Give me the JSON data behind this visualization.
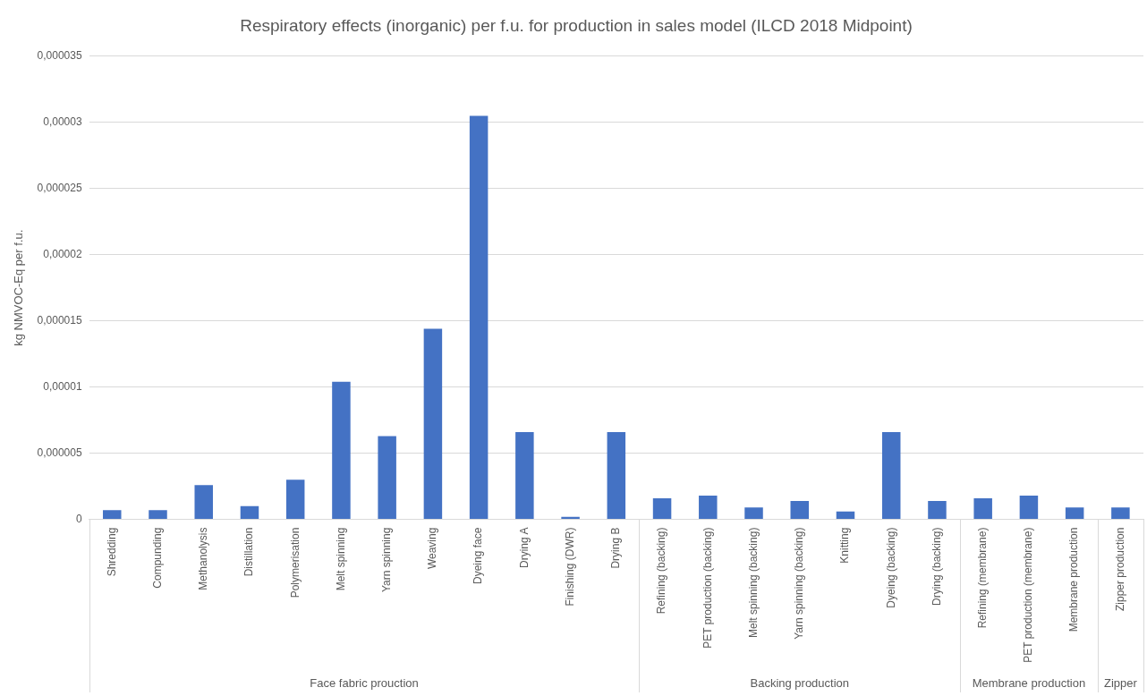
{
  "chart_data": {
    "type": "bar",
    "title": "Respiratory effects (inorganic) per f.u. for production in sales model (ILCD 2018 Midpoint)",
    "ylabel": "kg NMVOC-Eq per f.u.",
    "categories": [
      "Shredding",
      "Compunding",
      "Methanolysis",
      "Distillation",
      "Polymerisation",
      "Melt spinning",
      "Yarn spinning",
      "Weaving",
      "Dyeing face",
      "Drying A",
      "Finishing (DWR)",
      "Drying B",
      "Refining (backing)",
      "PET production (backing)",
      "Melt spinning (backing)",
      "Yarn spinning (backing)",
      "Knitting",
      "Dyeing (backing)",
      "Drying (backing)",
      "Refining (membrane)",
      "PET production (membrane)",
      "Membrane production",
      "Zipper production"
    ],
    "values": [
      7e-07,
      7e-07,
      2.6e-06,
      1e-06,
      3e-06,
      1.04e-05,
      6.3e-06,
      1.44e-05,
      3.05e-05,
      6.6e-06,
      2e-07,
      6.6e-06,
      1.6e-06,
      1.8e-06,
      9e-07,
      1.4e-06,
      6e-07,
      6.6e-06,
      1.4e-06,
      1.6e-06,
      1.8e-06,
      9e-07,
      9e-07
    ],
    "color": "#4472c4",
    "ylim": [
      0,
      3.5e-05
    ],
    "yticks": [
      {
        "value": 0,
        "label": "0"
      },
      {
        "value": 5e-06,
        "label": "0,000005"
      },
      {
        "value": 1e-05,
        "label": "0,00001"
      },
      {
        "value": 1.5e-05,
        "label": "0,000015"
      },
      {
        "value": 2e-05,
        "label": "0,00002"
      },
      {
        "value": 2.5e-05,
        "label": "0,000025"
      },
      {
        "value": 3e-05,
        "label": "0,00003"
      },
      {
        "value": 3.5e-05,
        "label": "0,000035"
      }
    ],
    "grid": "y",
    "annotations": [
      "Face fabric prouction",
      "Backing production",
      "Membrane production",
      "Zipper"
    ]
  }
}
